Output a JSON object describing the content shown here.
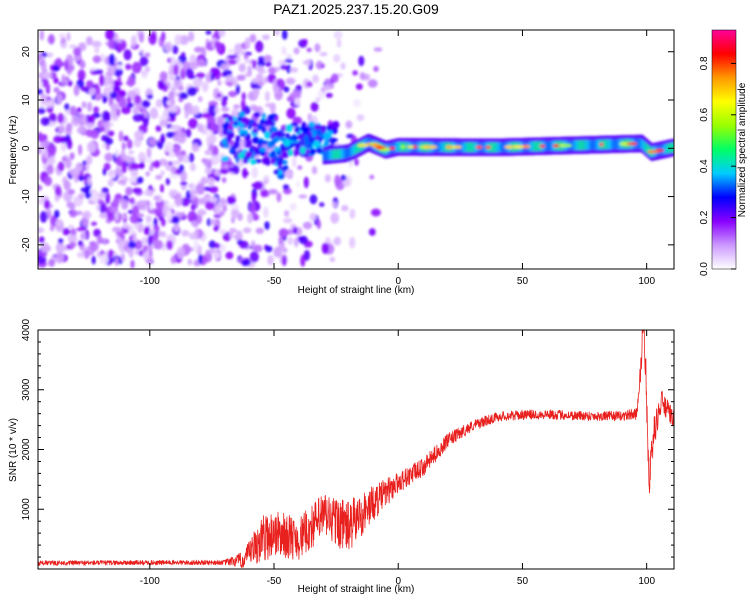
{
  "title": "PAZ1.2025.237.15.20.G09",
  "colors": {
    "snr_line": "#e8201e",
    "axes": "#000000",
    "background": "#ffffff",
    "colormap": [
      "#ffffff",
      "#cc99ff",
      "#8800ff",
      "#0000ff",
      "#00ccff",
      "#00ff66",
      "#99ff00",
      "#ffff00",
      "#ff9900",
      "#ff0000",
      "#ff0099"
    ]
  },
  "chart_data": [
    {
      "type": "heatmap",
      "name": "spectrogram",
      "xlabel": "Height of straight line (km)",
      "ylabel": "Frequency (Hz)",
      "xlim": [
        -145,
        111
      ],
      "ylim": [
        -25,
        24.5
      ],
      "xticks": [
        -100,
        -50,
        0,
        50,
        100
      ],
      "yticks": [
        -20,
        -10,
        0,
        10,
        20
      ],
      "colorbar": {
        "label": "Normalized spectral amplitude",
        "range": [
          0,
          0.93
        ],
        "ticks": [
          0.0,
          0.2,
          0.4,
          0.6,
          0.8
        ]
      },
      "features": {
        "noise_region_x": [
          -145,
          -25
        ],
        "noise_band_hz": [
          -24,
          24
        ],
        "noise_amplitude": [
          0.05,
          0.25
        ],
        "turbulent_region_x": [
          -70,
          -25
        ],
        "ridge_x": [
          -30,
          111
        ],
        "ridge_frequency_hz": [
          [
            -30,
            -1.5
          ],
          [
            -20,
            -1.0
          ],
          [
            -12,
            1.2
          ],
          [
            -5,
            -0.3
          ],
          [
            0,
            0.3
          ],
          [
            40,
            0.2
          ],
          [
            98,
            1.0
          ],
          [
            102,
            -0.8
          ],
          [
            111,
            0.2
          ]
        ],
        "ridge_amplitude": [
          0.35,
          0.85
        ]
      }
    },
    {
      "type": "line",
      "name": "snr",
      "xlabel": "Height of straight line (km)",
      "ylabel": "SNR (10 * v/v)",
      "xlim": [
        -145,
        111
      ],
      "ylim": [
        0,
        4000
      ],
      "xticks": [
        -100,
        -50,
        0,
        50,
        100
      ],
      "yticks": [
        1000,
        2000,
        3000,
        4000
      ],
      "trend": {
        "x": [
          -145,
          -70,
          -62,
          -55,
          -50,
          -40,
          -30,
          -20,
          -10,
          0,
          10,
          20,
          30,
          40,
          50,
          60,
          70,
          80,
          90,
          96,
          99,
          101,
          103,
          106,
          111
        ],
        "y": [
          100,
          110,
          150,
          500,
          600,
          500,
          900,
          700,
          1100,
          1450,
          1700,
          2150,
          2400,
          2550,
          2580,
          2590,
          2570,
          2560,
          2560,
          2600,
          4000,
          1500,
          2300,
          2800,
          2500
        ],
        "noise_amplitude": [
          40,
          40,
          150,
          400,
          400,
          350,
          400,
          450,
          300,
          180,
          150,
          120,
          90,
          80,
          80,
          80,
          80,
          80,
          80,
          100,
          300,
          300,
          250,
          200,
          150
        ]
      }
    }
  ]
}
